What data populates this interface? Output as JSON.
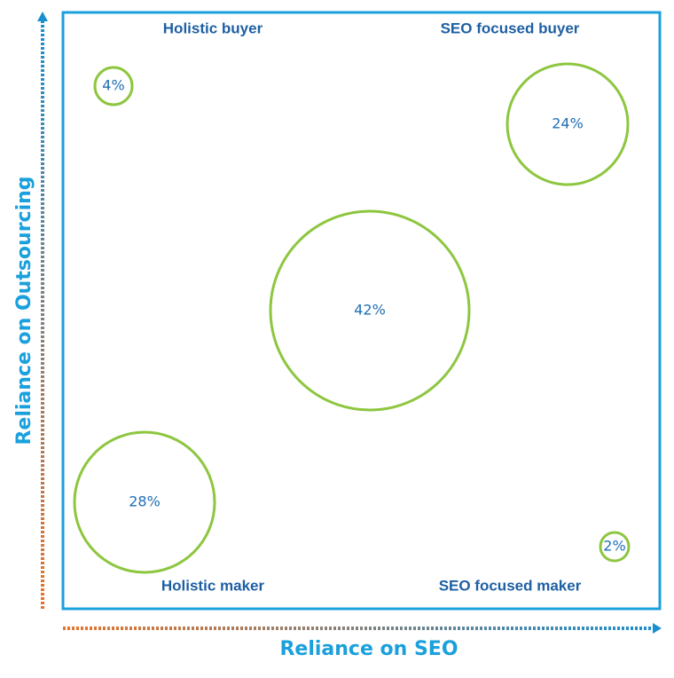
{
  "quadrants": {
    "top_left": "Holistic buyer",
    "top_right": "SEO focused buyer",
    "bottom_left": "Holistic maker",
    "bottom_right": "SEO focused maker"
  },
  "axes": {
    "x_label": "Reliance on SEO",
    "y_label": "Reliance on Outsourcing"
  },
  "bubbles": [
    {
      "label": "4%"
    },
    {
      "label": "24%"
    },
    {
      "label": "42%"
    },
    {
      "label": "28%"
    },
    {
      "label": "2%"
    }
  ]
}
